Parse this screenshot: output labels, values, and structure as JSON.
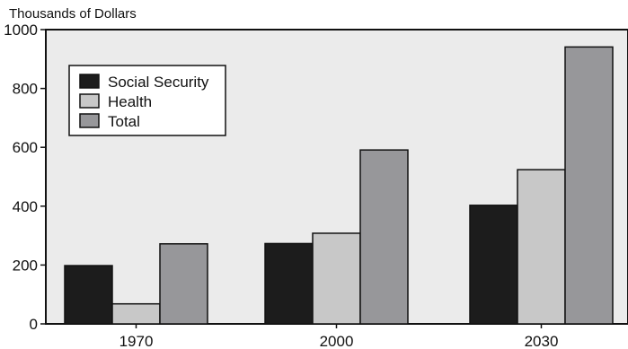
{
  "chart_data": {
    "type": "bar",
    "ylabel": "Thousands of Dollars",
    "xlabel": "",
    "title": "",
    "categories": [
      "1970",
      "2000",
      "2030"
    ],
    "series": [
      {
        "name": "Social Security",
        "values": [
          198,
          273,
          403
        ],
        "color": "#1c1c1c"
      },
      {
        "name": "Health",
        "values": [
          68,
          308,
          524
        ],
        "color": "#c8c8c8"
      },
      {
        "name": "Total",
        "values": [
          272,
          591,
          941
        ],
        "color": "#97979a"
      }
    ],
    "ylim": [
      0,
      1000
    ],
    "yticks": [
      "0",
      "200",
      "400",
      "600",
      "800",
      "1000"
    ],
    "grid": false,
    "legend_position": "top-left",
    "plot_background": "#ebebeb"
  }
}
